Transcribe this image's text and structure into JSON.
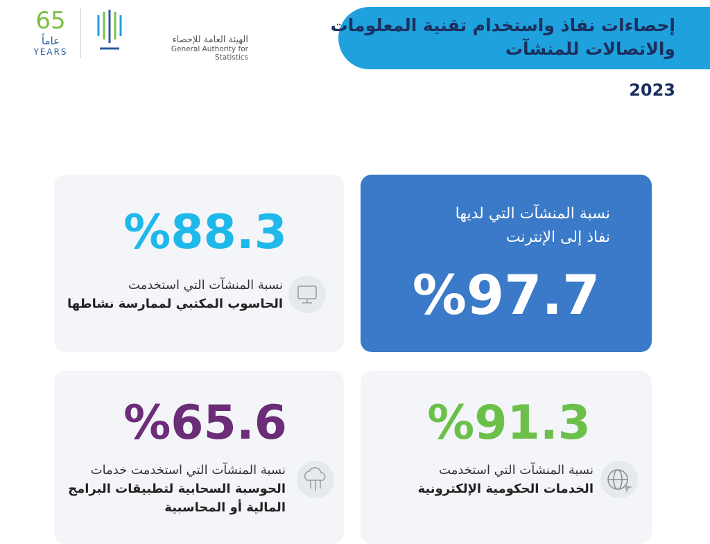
{
  "logo": {
    "anniversary_number": "65",
    "anniversary_word": "عاماً",
    "anniversary_en": "YEARS",
    "org_ar": "الهيئة العامة للإحصاء",
    "org_en": "General Authority for Statistics"
  },
  "header": {
    "title_lines": [
      "إحصاءات نفاذ واستخدام تقنية المعلومات",
      "والاتصالات للمنشآت"
    ],
    "year": "2023"
  },
  "cards": [
    {
      "label_lines": [
        "نسبة المنشآت التي لديها",
        "نفاذ إلى الإنترنت"
      ],
      "value": "%97.7"
    },
    {
      "label_lines": [
        "نسبة المنشآت التي استخدمت",
        "الحاسوب المكتبي لممارسة نشاطها"
      ],
      "value": "%88.3"
    },
    {
      "label_lines": [
        "نسبة المنشآت التي استخدمت",
        "الخدمات الحكومية الإلكترونية"
      ],
      "value": "%91.3"
    },
    {
      "label_lines": [
        "نسبة المنشآت التي استخدمت خدمات",
        "الحوسبة السحابية لتطبيقات البرامج",
        "المالية أو المحاسبية"
      ],
      "value": "%65.6"
    }
  ]
}
